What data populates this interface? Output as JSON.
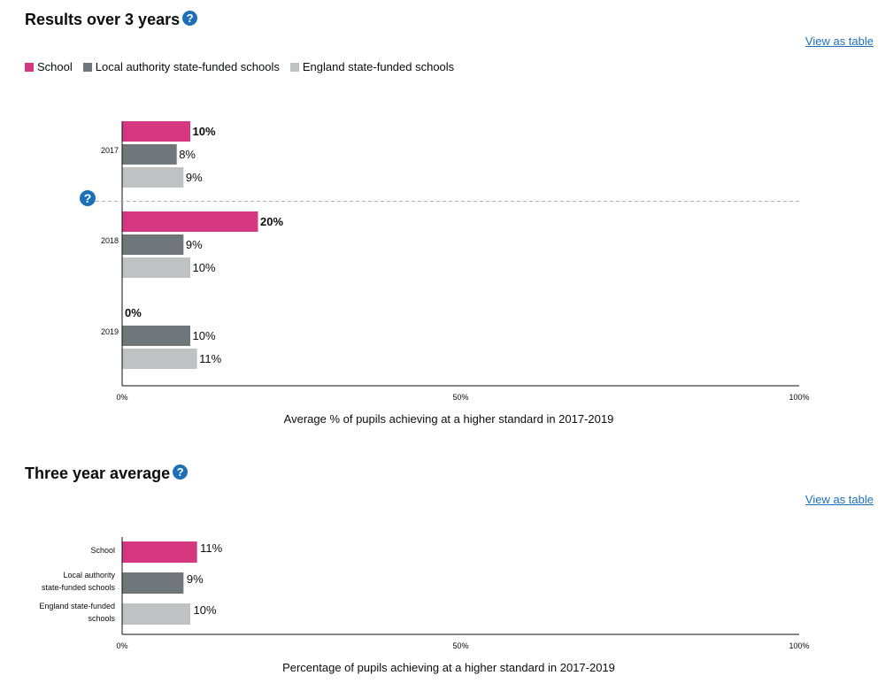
{
  "colors": {
    "school": "#d53880",
    "local_authority": "#6f777b",
    "england": "#bfc1c3",
    "link": "#1d70b8",
    "help_icon": "#1d70b8"
  },
  "icons": {
    "help": "question-mark-circle-icon"
  },
  "section1": {
    "title": "Results over 3 years",
    "help_glyph": "?",
    "view_table": "View as table",
    "legend": [
      {
        "label": "School",
        "series": "school"
      },
      {
        "label": "Local authority state-funded schools",
        "series": "local_authority"
      },
      {
        "label": "England state-funded schools",
        "series": "england"
      }
    ]
  },
  "section2": {
    "title": "Three year average",
    "help_glyph": "?",
    "view_table": "View as table"
  },
  "chart_data": [
    {
      "type": "bar",
      "orientation": "horizontal",
      "categories": [
        "2017",
        "2018",
        "2019"
      ],
      "series": [
        {
          "name": "School",
          "key": "school",
          "values": [
            10,
            20,
            0
          ],
          "labels": [
            "10%",
            "20%",
            "0%"
          ],
          "bold_labels": true
        },
        {
          "name": "Local authority state-funded schools",
          "key": "local_authority",
          "values": [
            8,
            9,
            10
          ],
          "labels": [
            "8%",
            "9%",
            "10%"
          ]
        },
        {
          "name": "England state-funded schools",
          "key": "england",
          "values": [
            9,
            10,
            11
          ],
          "labels": [
            "9%",
            "10%",
            "11%"
          ]
        }
      ],
      "xlim": [
        0,
        100
      ],
      "ticks": [
        0,
        50,
        100
      ],
      "tick_labels": [
        "0%",
        "50%",
        "100%"
      ],
      "xlabel": "Average % of pupils achieving at a higher standard in 2017-2019",
      "grid": false,
      "legend": "top-left"
    },
    {
      "type": "bar",
      "orientation": "horizontal",
      "categories": [
        [
          "School"
        ],
        [
          "Local authority",
          "state-funded schools"
        ],
        [
          "England state-funded",
          "schools"
        ]
      ],
      "series": [
        {
          "name": "Three year average",
          "values": [
            11,
            9,
            10
          ],
          "labels": [
            "11%",
            "9%",
            "10%"
          ],
          "colors": [
            "school",
            "local_authority",
            "england"
          ]
        }
      ],
      "xlim": [
        0,
        100
      ],
      "ticks": [
        0,
        50,
        100
      ],
      "tick_labels": [
        "0%",
        "50%",
        "100%"
      ],
      "xlabel": "Percentage of pupils achieving at a higher standard in 2017-2019",
      "grid": false
    }
  ]
}
